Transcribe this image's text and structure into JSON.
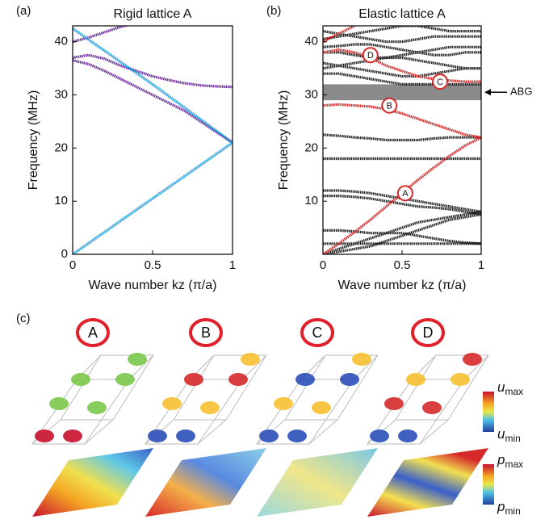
{
  "chart_data": [
    {
      "type": "line",
      "panel_label": "(a)",
      "title": "Rigid lattice A",
      "x_label": "Wave number kz (π/a)",
      "y_label": "Frequency (MHz)",
      "xlim": [
        0,
        1
      ],
      "ylim": [
        0,
        43
      ],
      "xticks": [
        0,
        0.5,
        1
      ],
      "yticks": [
        0,
        10,
        20,
        30,
        40
      ],
      "x": [
        0,
        0.1,
        0.2,
        0.3,
        0.4,
        0.5,
        0.6,
        0.7,
        0.8,
        0.9,
        1
      ],
      "series": [
        {
          "color": "#6a2c9a",
          "values": [
            0,
            2.1,
            4.2,
            6.3,
            8.4,
            10.5,
            12.6,
            14.7,
            16.8,
            18.9,
            21
          ]
        },
        {
          "color": "#6a2c9a",
          "values": [
            42.5,
            40.4,
            38.3,
            36.2,
            34.1,
            32,
            29.8,
            27.6,
            25.4,
            23.2,
            21
          ]
        },
        {
          "color": "#6a2c9a",
          "x": [
            0,
            0.1,
            0.2,
            0.3,
            0.35
          ],
          "values": [
            40,
            40.8,
            41.8,
            42.8,
            43.2
          ]
        },
        {
          "color": "#6a2c9a",
          "values": [
            37,
            37.5,
            36.8,
            35.5,
            34.5,
            33.5,
            32.8,
            32.2,
            31.8,
            31.6,
            31.5
          ]
        },
        {
          "color": "#6a2c9a",
          "values": [
            36.5,
            35.8,
            34.5,
            33,
            31.5,
            30,
            28.5,
            27,
            25,
            23,
            21
          ]
        },
        {
          "color": "#29b6e8",
          "values": [
            0,
            2.1,
            4.2,
            6.3,
            8.4,
            10.5,
            12.6,
            14.7,
            16.8,
            18.9,
            21
          ]
        },
        {
          "color": "#29b6e8",
          "values": [
            42.5,
            40.4,
            38.3,
            36.2,
            34.1,
            32,
            29.8,
            27.6,
            25.4,
            23.2,
            21
          ]
        }
      ]
    },
    {
      "type": "line",
      "panel_label": "(b)",
      "title": "Elastic lattice A",
      "x_label": "Wave number kz (π/a)",
      "y_label": "Frequency (MHz)",
      "xlim": [
        0,
        1
      ],
      "ylim": [
        0,
        43
      ],
      "xticks": [
        0,
        0.5,
        1
      ],
      "yticks": [
        10,
        20,
        30,
        40
      ],
      "x": [
        0,
        0.1,
        0.2,
        0.3,
        0.4,
        0.5,
        0.6,
        0.7,
        0.8,
        0.9,
        1
      ],
      "band": [
        29,
        32
      ],
      "band_color": "#8a8a8a",
      "band_label": "ABG",
      "series": [
        {
          "color": "#222222",
          "values": [
            2,
            2,
            2,
            2,
            2,
            2,
            2,
            2,
            2,
            2,
            2
          ]
        },
        {
          "color": "#222222",
          "values": [
            4.5,
            4.5,
            4.3,
            4,
            4,
            4,
            3.5,
            3,
            2.5,
            2.2,
            2
          ]
        },
        {
          "color": "#222222",
          "values": [
            0,
            1,
            2,
            3,
            4,
            5,
            6,
            6.5,
            7,
            7.5,
            8
          ]
        },
        {
          "color": "#222222",
          "values": [
            0,
            0.5,
            1,
            1.5,
            2.5,
            3.5,
            4.5,
            5.5,
            6.5,
            7,
            7.5
          ]
        },
        {
          "color": "#222222",
          "values": [
            12,
            12,
            11.8,
            11.5,
            11,
            10.5,
            10,
            9.5,
            9,
            8.5,
            8
          ]
        },
        {
          "color": "#222222",
          "values": [
            11,
            11,
            10.8,
            10.5,
            10,
            9.5,
            9,
            8.8,
            8.5,
            8,
            7.5
          ]
        },
        {
          "color": "#222222",
          "values": [
            18,
            18,
            18,
            18,
            18,
            18,
            18,
            18,
            18,
            18,
            18
          ]
        },
        {
          "color": "#222222",
          "values": [
            22.5,
            22.3,
            22,
            21.8,
            21.5,
            21.5,
            21.5,
            21.8,
            22,
            22,
            22
          ]
        },
        {
          "color": "#222222",
          "values": [
            34,
            34,
            33.5,
            33,
            32.5,
            32,
            32,
            32,
            32,
            32,
            32
          ]
        },
        {
          "color": "#222222",
          "values": [
            36,
            35.5,
            35,
            34.5,
            34,
            33.5,
            33.5,
            34,
            34.5,
            35,
            35
          ]
        },
        {
          "color": "#222222",
          "values": [
            39,
            39.2,
            39.5,
            39.5,
            39,
            38.5,
            38,
            37.5,
            37.5,
            38,
            38
          ]
        },
        {
          "color": "#222222",
          "values": [
            42,
            41.5,
            41,
            40.5,
            40,
            40,
            40.5,
            41,
            41,
            41,
            41
          ]
        },
        {
          "color": "#222222",
          "values": [
            35,
            35.5,
            36,
            36.5,
            37,
            37,
            36.5,
            36,
            35.5,
            35,
            35
          ]
        },
        {
          "color": "#222222",
          "values": [
            38,
            38,
            37.5,
            37,
            37,
            37.5,
            38,
            38.5,
            39,
            39,
            39
          ]
        },
        {
          "color": "#222222",
          "values": [
            40.5,
            41,
            41.5,
            42,
            42.5,
            43,
            43,
            42.5,
            42,
            42,
            42
          ]
        },
        {
          "color": "#d62a2a",
          "values": [
            0,
            2,
            4.2,
            6.5,
            9,
            11.5,
            14,
            16.3,
            18.5,
            20.5,
            22
          ]
        },
        {
          "color": "#d62a2a",
          "values": [
            28,
            28.2,
            28,
            27.8,
            27.3,
            26.5,
            25.5,
            24.5,
            23.5,
            22.5,
            22
          ]
        },
        {
          "color": "#d62a2a",
          "values": [
            38,
            38.5,
            38,
            37,
            35.5,
            34.5,
            33.5,
            33,
            32.7,
            32.5,
            32.5
          ]
        },
        {
          "color": "#d62a2a",
          "x": [
            0,
            0.1,
            0.2
          ],
          "values": [
            40,
            41.5,
            43
          ]
        }
      ],
      "markers": [
        {
          "label": "A",
          "x": 0.52,
          "y": 11.5
        },
        {
          "label": "B",
          "x": 0.42,
          "y": 28
        },
        {
          "label": "C",
          "x": 0.74,
          "y": 32.5
        },
        {
          "label": "D",
          "x": 0.3,
          "y": 37.5
        }
      ]
    }
  ],
  "panel_c": {
    "panel_label": "(c)",
    "modes": [
      "A",
      "B",
      "C",
      "D"
    ],
    "colorbars": [
      {
        "symbol": "u",
        "max": "max",
        "min": "min"
      },
      {
        "symbol": "p",
        "max": "max",
        "min": "min"
      }
    ]
  }
}
